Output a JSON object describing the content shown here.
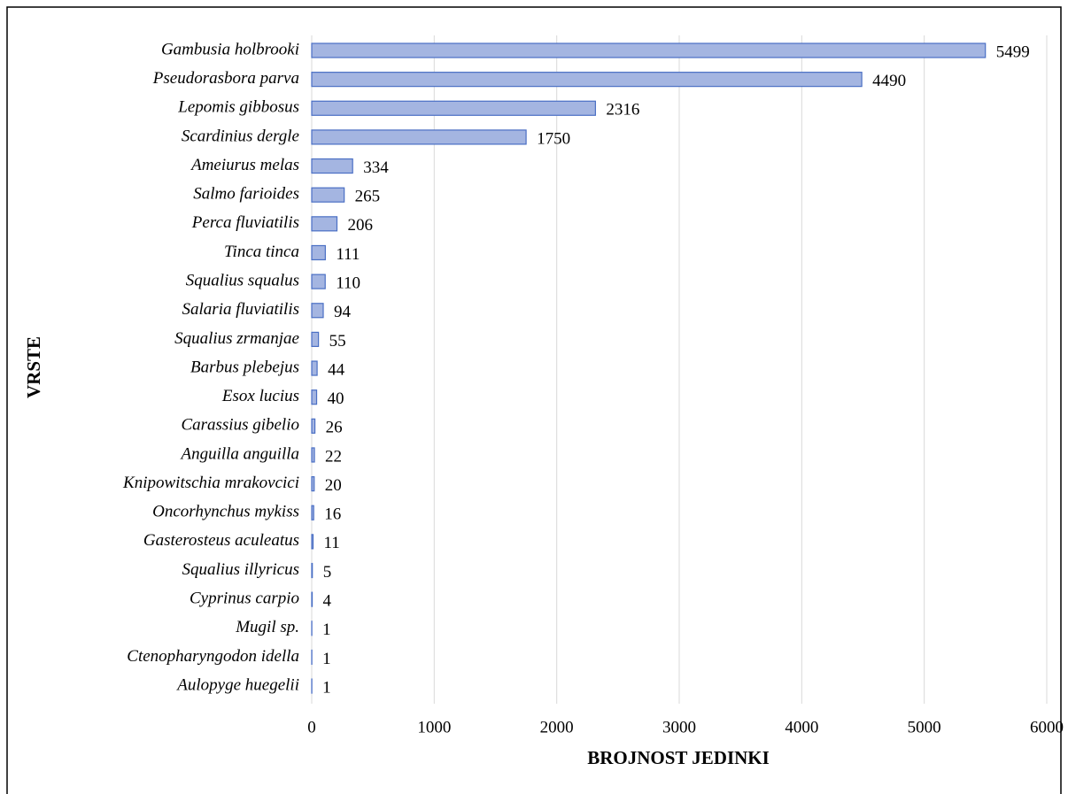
{
  "chart_data": {
    "type": "bar",
    "orientation": "horizontal",
    "x_label": "BROJNOST JEDINKI",
    "y_label": "VRSTE",
    "categories": [
      "Gambusia holbrooki",
      "Pseudorasbora parva",
      "Lepomis gibbosus",
      "Scardinius dergle",
      "Ameiurus melas",
      "Salmo farioides",
      "Perca fluviatilis",
      "Tinca tinca",
      "Squalius squalus",
      "Salaria fluviatilis",
      "Squalius zrmanjae",
      "Barbus plebejus",
      "Esox lucius",
      "Carassius gibelio",
      "Anguilla anguilla",
      "Knipowitschia mrakovcici",
      "Oncorhynchus mykiss",
      "Gasterosteus aculeatus",
      "Squalius illyricus",
      "Cyprinus carpio",
      "Mugil sp.",
      "Ctenopharyngodon idella",
      "Aulopyge huegelii"
    ],
    "values": [
      5499,
      4490,
      2316,
      1750,
      334,
      265,
      206,
      111,
      110,
      94,
      55,
      44,
      40,
      26,
      22,
      20,
      16,
      11,
      5,
      4,
      1,
      1,
      1
    ],
    "color": "#a4b5e1",
    "edge_color": "#4a6fc4",
    "xlim": [
      0,
      6000
    ],
    "xticks": [
      0,
      1000,
      2000,
      3000,
      4000,
      5000,
      6000
    ],
    "grid": true
  }
}
